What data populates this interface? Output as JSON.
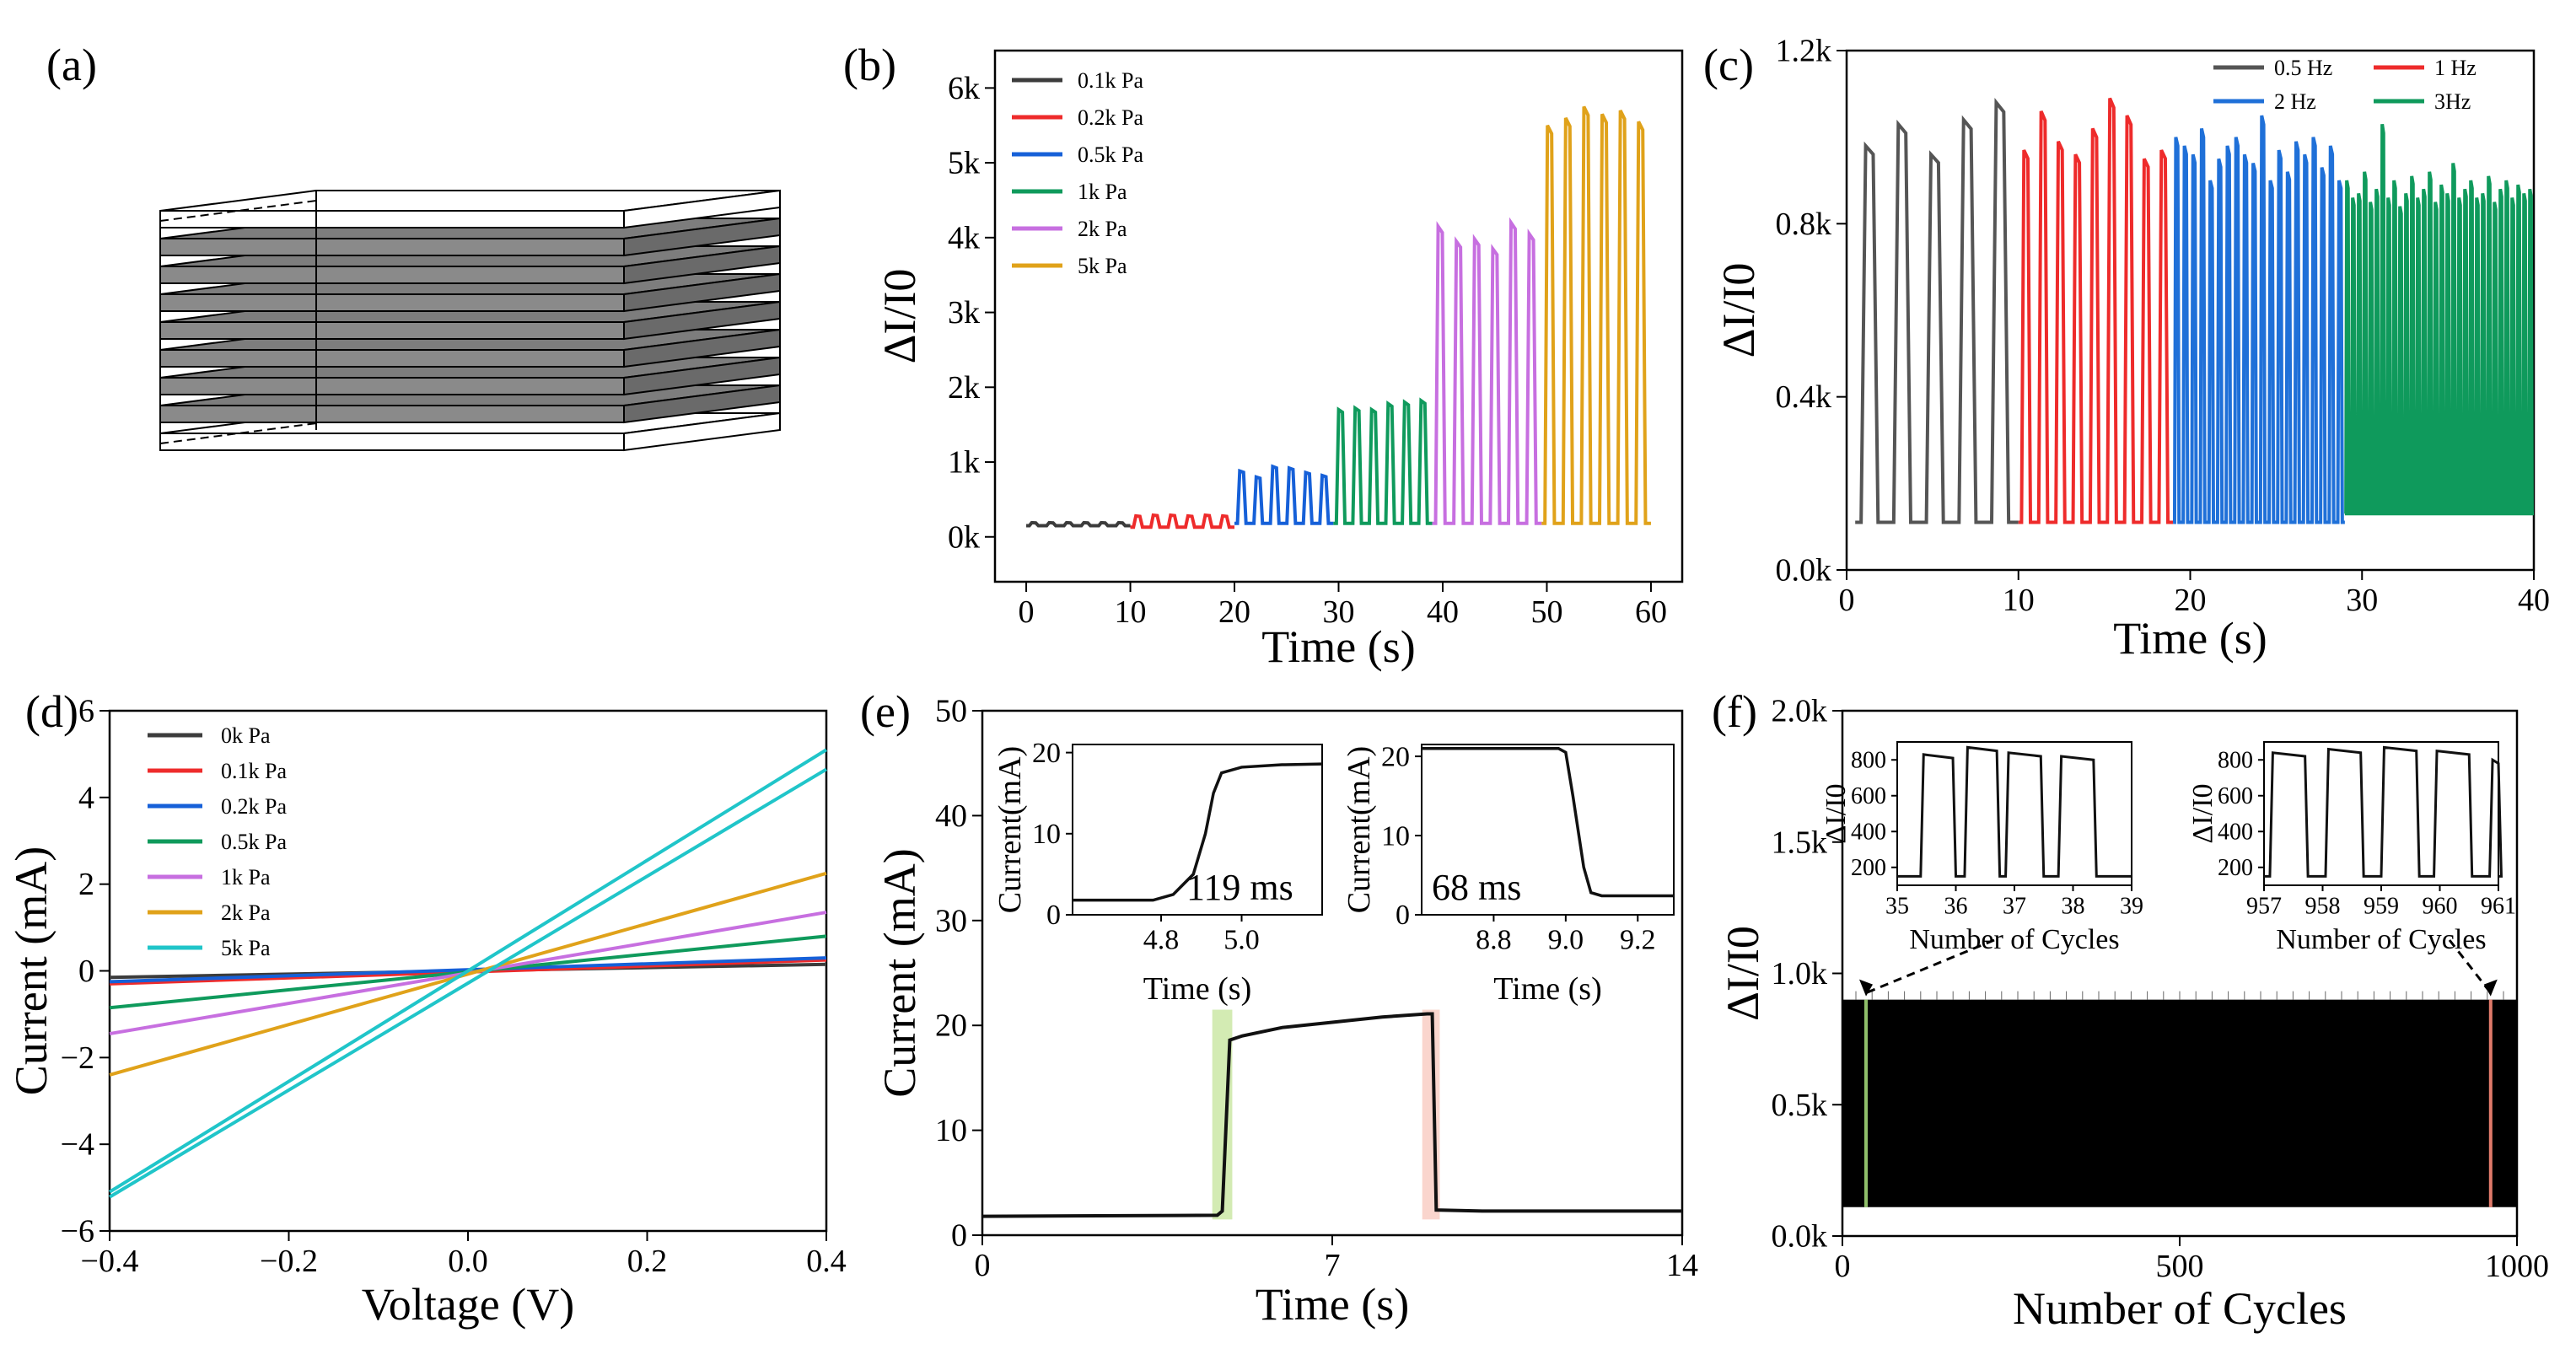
{
  "panels": {
    "a": {
      "label": "(a)",
      "description_layers": 9
    },
    "b": {
      "label": "(b)"
    },
    "c": {
      "label": "(c)"
    },
    "d": {
      "label": "(d)"
    },
    "e": {
      "label": "(e)"
    },
    "f": {
      "label": "(f)"
    }
  },
  "chart_data": [
    {
      "id": "b",
      "type": "line",
      "xlabel": "Time (s)",
      "ylabel": "ΔI/I0",
      "xlim": [
        -3,
        63
      ],
      "ylim": [
        -600,
        6500
      ],
      "xticks": [
        0,
        10,
        20,
        30,
        40,
        50,
        60
      ],
      "xtick_labels": [
        "0",
        "10",
        "20",
        "30",
        "40",
        "50",
        "60"
      ],
      "yticks": [
        0,
        1000,
        2000,
        3000,
        4000,
        5000,
        6000
      ],
      "ytick_labels": [
        "0k",
        "1k",
        "2k",
        "3k",
        "4k",
        "5k",
        "6k"
      ],
      "series": [
        {
          "name": "0.1k Pa",
          "color": "#3c3c3c",
          "t_start": 0,
          "t_end": 10,
          "cycles": 6,
          "base": 150,
          "peaks": [
            190,
            190,
            190,
            190,
            190,
            190
          ]
        },
        {
          "name": "0.2k Pa",
          "color": "#ee2b2b",
          "t_start": 10,
          "t_end": 20,
          "cycles": 6,
          "base": 130,
          "peaks": [
            280,
            290,
            290,
            280,
            290,
            280
          ]
        },
        {
          "name": "0.5k Pa",
          "color": "#1660d8",
          "t_start": 20,
          "t_end": 29.5,
          "cycles": 6,
          "base": 180,
          "peaks": [
            880,
            800,
            940,
            920,
            860,
            820
          ]
        },
        {
          "name": "1k Pa",
          "color": "#0f9a5c",
          "t_start": 29.5,
          "t_end": 39,
          "cycles": 6,
          "base": 180,
          "peaks": [
            1700,
            1720,
            1700,
            1780,
            1800,
            1820
          ]
        },
        {
          "name": "2k Pa",
          "color": "#c76fe0",
          "t_start": 39,
          "t_end": 49.5,
          "cycles": 6,
          "base": 180,
          "peaks": [
            4150,
            3950,
            3980,
            3850,
            4200,
            4050
          ]
        },
        {
          "name": "5k Pa",
          "color": "#e0a21a",
          "t_start": 49.5,
          "t_end": 60,
          "cycles": 6,
          "base": 180,
          "peaks": [
            5500,
            5600,
            5750,
            5650,
            5700,
            5550
          ]
        }
      ]
    },
    {
      "id": "c",
      "type": "line",
      "xlabel": "Time (s)",
      "ylabel": "ΔI/I0",
      "xlim": [
        0,
        40
      ],
      "ylim": [
        0,
        1200
      ],
      "xticks": [
        0,
        10,
        20,
        30,
        40
      ],
      "xtick_labels": [
        "0",
        "10",
        "20",
        "30",
        "40"
      ],
      "yticks": [
        0,
        400,
        800,
        1200
      ],
      "ytick_labels": [
        "0.0k",
        "0.4k",
        "0.8k",
        "1.2k"
      ],
      "series": [
        {
          "name": "0.5 Hz",
          "color": "#555555",
          "t_start": 0.5,
          "t_end": 10,
          "cycles": 5,
          "base": 110,
          "peaks": [
            980,
            1030,
            960,
            1040,
            1080
          ]
        },
        {
          "name": "1 Hz",
          "color": "#ee2b2b",
          "t_start": 10,
          "t_end": 19,
          "cycles": 9,
          "base": 110,
          "peaks": [
            970,
            1060,
            990,
            960,
            1020,
            1090,
            1050,
            950,
            970
          ]
        },
        {
          "name": "2 Hz",
          "color": "#1f70d8",
          "t_start": 19,
          "t_end": 29,
          "cycles": 20,
          "base": 110,
          "peaks": [
            1000,
            980,
            960,
            1020,
            900,
            950,
            980,
            1000,
            960,
            940,
            1050,
            900,
            970,
            920,
            990,
            960,
            1000,
            930,
            980,
            900
          ]
        },
        {
          "name": "3Hz",
          "color": "#0f9a5c",
          "t_start": 29,
          "t_end": 40,
          "cycles": 32,
          "base": 130,
          "peaks": [
            900,
            860,
            870,
            920,
            850,
            880,
            1030,
            860,
            900,
            840,
            870,
            910,
            860,
            880,
            920,
            850,
            890,
            870,
            940,
            860,
            880,
            900,
            860,
            870,
            910,
            850,
            880,
            900,
            860,
            890,
            870,
            880
          ]
        }
      ]
    },
    {
      "id": "d",
      "type": "line",
      "xlabel": "Voltage (V)",
      "ylabel": "Current (mA)",
      "xlim": [
        -0.4,
        0.4
      ],
      "ylim": [
        -6,
        6
      ],
      "xticks": [
        -0.4,
        -0.2,
        0.0,
        0.2,
        0.4
      ],
      "xtick_labels": [
        "−0.4",
        "−0.2",
        "0.0",
        "0.2",
        "0.4"
      ],
      "yticks": [
        -6,
        -4,
        -2,
        0,
        2,
        4,
        6
      ],
      "ytick_labels": [
        "−6",
        "−4",
        "−2",
        "0",
        "2",
        "4",
        "6"
      ],
      "series": [
        {
          "name": "0k Pa",
          "color": "#3c3c3c",
          "y_at_min": -0.15,
          "y_at_max": 0.15
        },
        {
          "name": "0.1k Pa",
          "color": "#ee2b2b",
          "y_at_min": -0.3,
          "y_at_max": 0.25
        },
        {
          "name": "0.2k Pa",
          "color": "#1660d8",
          "y_at_min": -0.25,
          "y_at_max": 0.3
        },
        {
          "name": "0.5k Pa",
          "color": "#0f9a5c",
          "y_at_min": -0.85,
          "y_at_max": 0.8
        },
        {
          "name": "1k Pa",
          "color": "#c76fe0",
          "y_at_min": -1.45,
          "y_at_max": 1.35
        },
        {
          "name": "2k Pa",
          "color": "#e0a21a",
          "y_at_min": -2.4,
          "y_at_max": 2.25
        },
        {
          "name": "5k Pa",
          "color": "#20c5c9",
          "y_at_min": -5.1,
          "y_at_max": 5.1
        }
      ]
    },
    {
      "id": "e",
      "type": "line",
      "xlabel": "Time (s)",
      "ylabel": "Current (mA)",
      "xlim": [
        0,
        14
      ],
      "ylim": [
        0,
        50
      ],
      "xticks": [
        0,
        7,
        14
      ],
      "xtick_labels": [
        "0",
        "7",
        "14"
      ],
      "yticks": [
        0,
        10,
        20,
        30,
        40,
        50
      ],
      "ytick_labels": [
        "0",
        "10",
        "20",
        "30",
        "40",
        "50"
      ],
      "points": [
        [
          0,
          1.8
        ],
        [
          4.7,
          1.9
        ],
        [
          4.8,
          2.3
        ],
        [
          4.95,
          18.6
        ],
        [
          5.2,
          19.0
        ],
        [
          6,
          19.8
        ],
        [
          7,
          20.3
        ],
        [
          8,
          20.8
        ],
        [
          8.9,
          21.1
        ],
        [
          9.0,
          21.1
        ],
        [
          9.08,
          2.4
        ],
        [
          10,
          2.3
        ],
        [
          14,
          2.3
        ]
      ],
      "highlights": [
        {
          "from": 4.6,
          "to": 5.0,
          "color": "#c8e6a0"
        },
        {
          "from": 8.8,
          "to": 9.15,
          "color": "#f9cbc0"
        }
      ],
      "insets": [
        {
          "xlabel": "Time (s)",
          "ylabel": "Current(mA)",
          "xlim": [
            4.58,
            5.2
          ],
          "ylim": [
            0,
            21
          ],
          "xticks": [
            4.8,
            5.0
          ],
          "xtick_labels": [
            "4.8",
            "5.0"
          ],
          "yticks": [
            0,
            10,
            20
          ],
          "ytick_labels": [
            "0",
            "10",
            "20"
          ],
          "annotation": "119 ms",
          "points": [
            [
              4.58,
              1.8
            ],
            [
              4.78,
              1.8
            ],
            [
              4.83,
              2.5
            ],
            [
              4.88,
              5
            ],
            [
              4.91,
              10
            ],
            [
              4.93,
              15
            ],
            [
              4.95,
              17.5
            ],
            [
              5.0,
              18.2
            ],
            [
              5.1,
              18.5
            ],
            [
              5.2,
              18.6
            ]
          ]
        },
        {
          "xlabel": "Time (s)",
          "ylabel": "Current(mA)",
          "xlim": [
            8.6,
            9.3
          ],
          "ylim": [
            0,
            21.5
          ],
          "xticks": [
            8.8,
            9.0,
            9.2
          ],
          "xtick_labels": [
            "8.8",
            "9.0",
            "9.2"
          ],
          "yticks": [
            0,
            10,
            20
          ],
          "ytick_labels": [
            "0",
            "10",
            "20"
          ],
          "annotation": "68 ms",
          "points": [
            [
              8.6,
              21.0
            ],
            [
              8.98,
              21.0
            ],
            [
              9.0,
              20.5
            ],
            [
              9.02,
              15
            ],
            [
              9.05,
              6
            ],
            [
              9.07,
              2.8
            ],
            [
              9.1,
              2.4
            ],
            [
              9.3,
              2.4
            ]
          ]
        }
      ]
    },
    {
      "id": "f",
      "type": "line",
      "xlabel": "Number of Cycles",
      "ylabel": "ΔI/I0",
      "xlim": [
        0,
        1000
      ],
      "ylim": [
        0,
        2000
      ],
      "xticks": [
        0,
        500,
        1000
      ],
      "xtick_labels": [
        "0",
        "500",
        "1000"
      ],
      "yticks": [
        0,
        500,
        1000,
        1500,
        2000
      ],
      "ytick_labels": [
        "0.0k",
        "0.5k",
        "1.0k",
        "1.5k",
        "2.0k"
      ],
      "band": {
        "from": 0,
        "to": 1000,
        "low": 110,
        "high": 900
      },
      "markers": [
        {
          "x": 35,
          "color": "#8fbf6a"
        },
        {
          "x": 961,
          "color": "#e07a6a"
        }
      ],
      "insets": [
        {
          "xlabel": "Number of Cycles",
          "ylabel": "ΔI/I0",
          "xlim": [
            35,
            39
          ],
          "ylim": [
            100,
            900
          ],
          "xticks": [
            35,
            36,
            37,
            38,
            39
          ],
          "xtick_labels": [
            "35",
            "36",
            "37",
            "38",
            "39"
          ],
          "yticks": [
            200,
            400,
            600,
            800
          ],
          "ytick_labels": [
            "200",
            "400",
            "600",
            "800"
          ],
          "pulses": [
            [
              35.4,
              35.95,
              830
            ],
            [
              36.15,
              36.7,
              870
            ],
            [
              36.85,
              37.45,
              840
            ],
            [
              37.75,
              38.35,
              820
            ]
          ]
        },
        {
          "xlabel": "Number of Cycles",
          "ylabel": "ΔI/I0",
          "xlim": [
            957,
            961
          ],
          "ylim": [
            100,
            900
          ],
          "xticks": [
            957,
            958,
            959,
            960,
            961
          ],
          "xtick_labels": [
            "957",
            "958",
            "959",
            "960",
            "961"
          ],
          "yticks": [
            200,
            400,
            600,
            800
          ],
          "ytick_labels": [
            "200",
            "400",
            "600",
            "800"
          ],
          "pulses": [
            [
              957.1,
              957.7,
              840
            ],
            [
              958.05,
              958.65,
              860
            ],
            [
              959.0,
              959.6,
              870
            ],
            [
              959.9,
              960.5,
              850
            ],
            [
              960.85,
              961.0,
              800
            ]
          ]
        }
      ]
    }
  ]
}
